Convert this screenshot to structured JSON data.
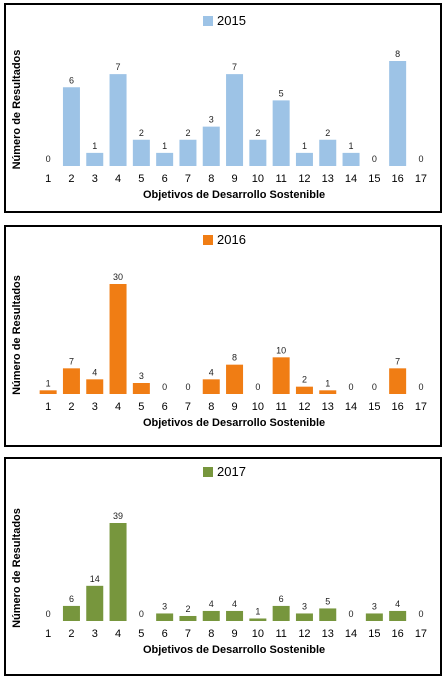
{
  "chart_data": [
    {
      "type": "bar",
      "legend": "2015",
      "color": "#9DC3E6",
      "xlabel": "Objetivos de Desarrollo Sostenible",
      "ylabel": "Número de Resultados",
      "categories": [
        "1",
        "2",
        "3",
        "4",
        "5",
        "6",
        "7",
        "8",
        "9",
        "10",
        "11",
        "12",
        "13",
        "14",
        "15",
        "16",
        "17"
      ],
      "values": [
        0,
        6,
        1,
        7,
        2,
        1,
        2,
        3,
        7,
        2,
        5,
        1,
        2,
        1,
        0,
        8,
        0
      ],
      "ymax": 8
    },
    {
      "type": "bar",
      "legend": "2016",
      "color": "#F07D14",
      "xlabel": "Objetivos de Desarrollo Sostenible",
      "ylabel": "Número de Resultados",
      "categories": [
        "1",
        "2",
        "3",
        "4",
        "5",
        "6",
        "7",
        "8",
        "9",
        "10",
        "11",
        "12",
        "13",
        "14",
        "15",
        "16",
        "17"
      ],
      "values": [
        1,
        7,
        4,
        30,
        3,
        0,
        0,
        4,
        8,
        0,
        10,
        2,
        1,
        0,
        0,
        7,
        0
      ],
      "ymax": 30
    },
    {
      "type": "bar",
      "legend": "2017",
      "color": "#77963D",
      "xlabel": "Objetivos de Desarrollo Sostenible",
      "ylabel": "Número de Resultados",
      "categories": [
        "1",
        "2",
        "3",
        "4",
        "5",
        "6",
        "7",
        "8",
        "9",
        "10",
        "11",
        "12",
        "13",
        "14",
        "15",
        "16",
        "17"
      ],
      "values": [
        0,
        6,
        14,
        39,
        0,
        3,
        2,
        4,
        4,
        1,
        6,
        3,
        5,
        0,
        3,
        4,
        0
      ],
      "ymax": 39
    }
  ]
}
